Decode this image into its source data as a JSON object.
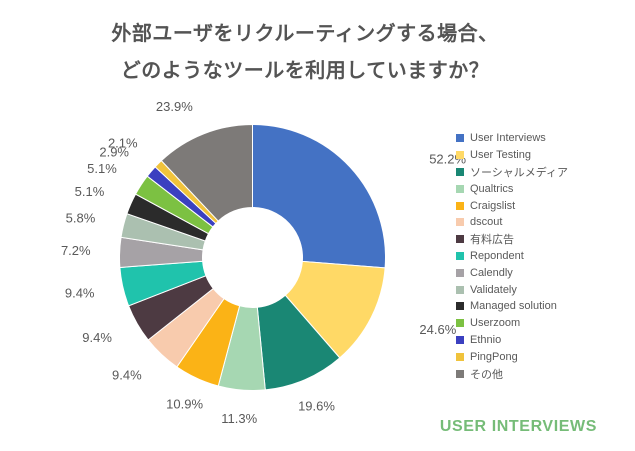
{
  "title": {
    "line1": "外部ユーザをリクルーティングする場合、",
    "line2": "どのようなツールを利用していますか？",
    "color": "#545454"
  },
  "chart_data": {
    "type": "pie",
    "subtype": "donut",
    "title": "外部ユーザをリクルーティングする場合、どのようなツールを利用していますか？",
    "legend_position": "right",
    "start_angle_deg": 0,
    "direction": "clockwise",
    "label_format": "{value}%",
    "values_are_multiselect_percent": true,
    "series": [
      {
        "label": "User Interviews",
        "value": 52.2,
        "color": "#4472C4"
      },
      {
        "label": "User Testing",
        "value": 24.6,
        "color": "#FFD966"
      },
      {
        "label": "ソーシャルメディア",
        "value": 19.6,
        "color": "#1A8774"
      },
      {
        "label": "Qualtrics",
        "value": 11.3,
        "color": "#A6D7B2"
      },
      {
        "label": "Craigslist",
        "value": 10.9,
        "color": "#FBB316"
      },
      {
        "label": "dscout",
        "value": 9.4,
        "color": "#F8CBAD"
      },
      {
        "label": "有料広告",
        "value": 9.4,
        "color": "#4D3A42"
      },
      {
        "label": "Repondent",
        "value": 9.4,
        "color": "#20C3AC"
      },
      {
        "label": "Calendly",
        "value": 7.2,
        "color": "#A6A2A6"
      },
      {
        "label": "Validately",
        "value": 5.8,
        "color": "#ABC0B0"
      },
      {
        "label": "Managed solution",
        "value": 5.1,
        "color": "#2B2B2B"
      },
      {
        "label": "Userzoom",
        "value": 5.1,
        "color": "#7CC142"
      },
      {
        "label": "Ethnio",
        "value": 2.9,
        "color": "#3B40C0"
      },
      {
        "label": "PingPong",
        "value": 2.1,
        "color": "#F0C33C"
      },
      {
        "label": "その他",
        "value": 23.9,
        "color": "#7D7A78"
      }
    ]
  },
  "branding": {
    "text": "USER INTERVIEWS",
    "color": "#76BC78"
  },
  "colors": {
    "label_text": "#595959",
    "background": "#FFFFFF"
  }
}
